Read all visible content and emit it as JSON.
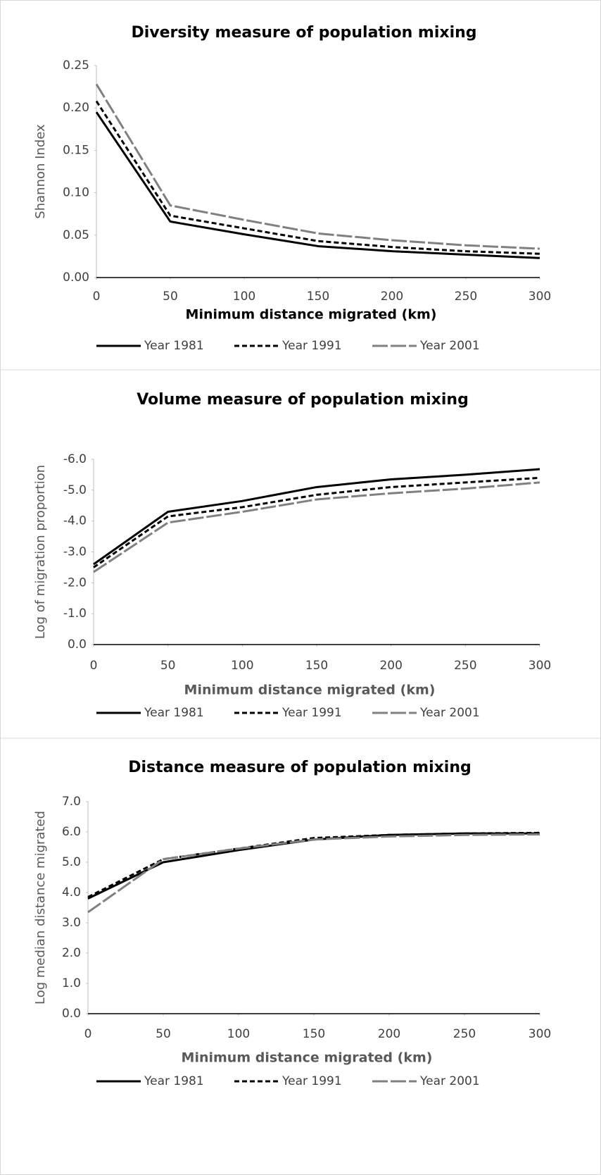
{
  "chart_data": [
    {
      "type": "line",
      "title": "Diversity measure of population mixing",
      "xlabel": "Minimum distance migrated (km)",
      "ylabel": "Shannon Index",
      "x": [
        0,
        50,
        100,
        150,
        200,
        250,
        300
      ],
      "xlim": [
        0,
        300
      ],
      "xticks": [
        0,
        50,
        100,
        150,
        200,
        250,
        300
      ],
      "ylim": [
        0,
        0.25
      ],
      "yticks": [
        {
          "value": 0,
          "label": "0.00"
        },
        0.05,
        {
          "value": 0.1,
          "label": "0.10"
        },
        0.15,
        {
          "value": 0.2,
          "label": "0.20"
        },
        0.25
      ],
      "series": [
        {
          "name": "Year 1981",
          "color": "#000000",
          "dash": "solid",
          "values": [
            0.195,
            0.066,
            0.051,
            0.037,
            0.031,
            0.027,
            0.023
          ]
        },
        {
          "name": "Year 1991",
          "color": "#000000",
          "dash": "dashed",
          "values": [
            0.208,
            0.073,
            0.058,
            0.043,
            0.036,
            0.031,
            0.028
          ]
        },
        {
          "name": "Year 2001",
          "color": "#808080",
          "dash": "longdash",
          "values": [
            0.228,
            0.085,
            0.068,
            0.052,
            0.044,
            0.038,
            0.034
          ]
        }
      ]
    },
    {
      "type": "line",
      "title": "Volume measure of population mixing",
      "xlabel": "Minimum distance migrated (km)",
      "ylabel": "Log of migration proportion",
      "x": [
        0,
        50,
        100,
        150,
        200,
        250,
        300
      ],
      "xlim": [
        0,
        300
      ],
      "xticks": [
        0,
        50,
        100,
        150,
        200,
        250,
        300
      ],
      "ylim": [
        0,
        -6
      ],
      "yticks": [
        {
          "value": 0,
          "label": "0.0"
        },
        {
          "value": -1,
          "label": "-1.0"
        },
        {
          "value": -2,
          "label": "-2.0"
        },
        {
          "value": -3,
          "label": "-3.0"
        },
        {
          "value": -4,
          "label": "-4.0"
        },
        {
          "value": -5,
          "label": "-5.0"
        },
        {
          "value": -6,
          "label": "-6.0"
        }
      ],
      "series": [
        {
          "name": "Year 1981",
          "color": "#000000",
          "dash": "solid",
          "values": [
            -2.6,
            -4.3,
            -4.65,
            -5.1,
            -5.35,
            -5.5,
            -5.68
          ]
        },
        {
          "name": "Year 1991",
          "color": "#000000",
          "dash": "dashed",
          "values": [
            -2.5,
            -4.15,
            -4.45,
            -4.85,
            -5.1,
            -5.25,
            -5.4
          ]
        },
        {
          "name": "Year 2001",
          "color": "#808080",
          "dash": "longdash",
          "values": [
            -2.35,
            -3.95,
            -4.3,
            -4.7,
            -4.9,
            -5.05,
            -5.25
          ]
        }
      ]
    },
    {
      "type": "line",
      "title": "Distance measure of population mixing",
      "xlabel": "Minimum distance migrated (km)",
      "ylabel": "Log median distance migrated",
      "x": [
        0,
        50,
        100,
        150,
        200,
        250,
        300
      ],
      "xlim": [
        0,
        300
      ],
      "xticks": [
        0,
        50,
        100,
        150,
        200,
        250,
        300
      ],
      "ylim": [
        0,
        7
      ],
      "yticks": [
        {
          "value": 0,
          "label": "0.0"
        },
        {
          "value": 1,
          "label": "1.0"
        },
        {
          "value": 2,
          "label": "2.0"
        },
        {
          "value": 3,
          "label": "3.0"
        },
        {
          "value": 4,
          "label": "4.0"
        },
        {
          "value": 5,
          "label": "5.0"
        },
        {
          "value": 6,
          "label": "6.0"
        },
        {
          "value": 7,
          "label": "7.0"
        }
      ],
      "series": [
        {
          "name": "Year 1981",
          "color": "#000000",
          "dash": "solid",
          "values": [
            3.8,
            5.0,
            5.4,
            5.75,
            5.9,
            5.95,
            5.95
          ]
        },
        {
          "name": "Year 1991",
          "color": "#000000",
          "dash": "dashed",
          "values": [
            3.85,
            5.1,
            5.45,
            5.8,
            5.9,
            5.95,
            5.97
          ]
        },
        {
          "name": "Year 2001",
          "color": "#808080",
          "dash": "longdash",
          "values": [
            3.35,
            5.1,
            5.45,
            5.75,
            5.85,
            5.9,
            5.92
          ]
        }
      ]
    }
  ]
}
